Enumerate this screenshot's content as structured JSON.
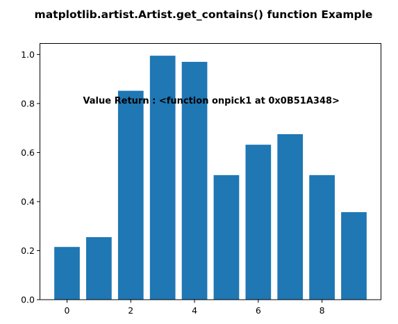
{
  "chart_data": {
    "type": "bar",
    "title": "matplotlib.artist.Artist.get_contains() function Example",
    "annotation": "Value Return : <function onpick1 at 0x0B51A348>",
    "annotation_anchor": {
      "x": 0.5,
      "y": 0.8
    },
    "x": [
      0,
      1,
      2,
      3,
      4,
      5,
      6,
      7,
      8,
      9
    ],
    "values": [
      0.215,
      0.255,
      0.852,
      0.995,
      0.97,
      0.508,
      0.632,
      0.675,
      0.508,
      0.357
    ],
    "bar_width": 0.8,
    "color": "#1f77b4",
    "xlim": [
      -0.85,
      9.85
    ],
    "ylim": [
      0,
      1.045
    ],
    "xticks": [
      0,
      2,
      4,
      6,
      8
    ],
    "xtick_labels": [
      "0",
      "2",
      "4",
      "6",
      "8"
    ],
    "yticks": [
      0.0,
      0.2,
      0.4,
      0.6,
      0.8,
      1.0
    ],
    "ytick_labels": [
      "0.0",
      "0.2",
      "0.4",
      "0.6",
      "0.8",
      "1.0"
    ],
    "grid": false,
    "xlabel": "",
    "ylabel": ""
  }
}
